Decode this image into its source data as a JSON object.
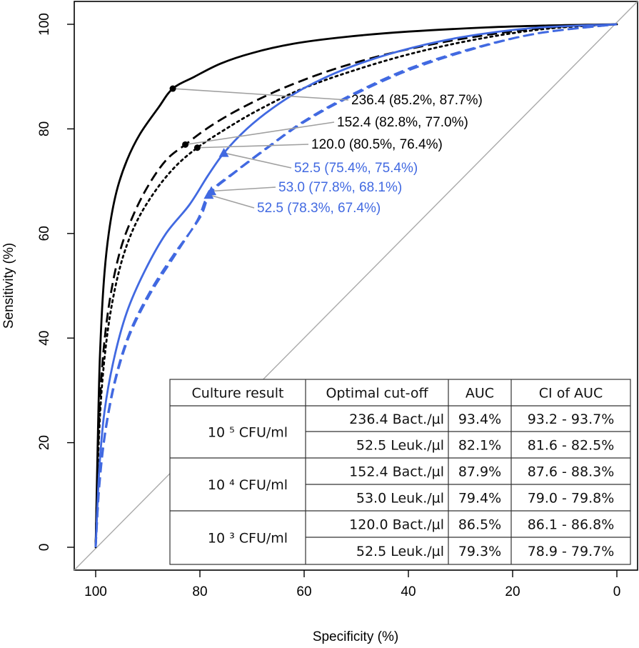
{
  "chart_data": {
    "type": "line",
    "title": "",
    "xlabel": "Specificity (%)",
    "ylabel": "Sensitivity (%)",
    "xlim": [
      100,
      0
    ],
    "ylim": [
      0,
      100
    ],
    "xticks": [
      "100",
      "80",
      "60",
      "40",
      "20",
      "0"
    ],
    "yticks": [
      "0",
      "20",
      "40",
      "60",
      "80",
      "100"
    ],
    "grid": false,
    "series": [
      {
        "name": "10^5 CFU/ml Bacteria",
        "color": "#000000",
        "style": "solid",
        "x": [
          100,
          99.6,
          99.2,
          98.5,
          97.5,
          96,
          94,
          91.5,
          88,
          85.2,
          81,
          76,
          70,
          62,
          52,
          40,
          25,
          12,
          0
        ],
        "y": [
          0,
          20,
          36,
          50,
          60,
          68,
          74,
          79,
          84,
          87.7,
          90,
          92.5,
          94.5,
          96.3,
          97.6,
          98.6,
          99.4,
          99.8,
          100
        ]
      },
      {
        "name": "10^4 CFU/ml Bacteria",
        "color": "#000000",
        "style": "dashed",
        "x": [
          100,
          99.5,
          98.8,
          97.5,
          95.5,
          93,
          90,
          86.5,
          82.8,
          78,
          72,
          64,
          54,
          42,
          28,
          14,
          0
        ],
        "y": [
          0,
          20,
          34,
          46,
          56,
          63,
          69,
          74,
          77.0,
          80.5,
          84,
          87.8,
          91.5,
          94.8,
          97.5,
          99.3,
          100
        ]
      },
      {
        "name": "10^3 CFU/ml Bacteria",
        "color": "#000000",
        "style": "dotted",
        "x": [
          100,
          99.5,
          98.7,
          97.3,
          95.2,
          92.5,
          89,
          85,
          80.5,
          75,
          69,
          61,
          51,
          39,
          26,
          13,
          0
        ],
        "y": [
          0,
          18,
          32,
          44,
          54,
          61.5,
          67.5,
          72.5,
          76.4,
          80,
          83.5,
          87.4,
          91,
          94.5,
          97.3,
          99.2,
          100
        ]
      },
      {
        "name": "10^5 CFU/ml Leukocytes",
        "color": "#4169E1",
        "style": "solid",
        "x": [
          100,
          99.3,
          98.3,
          96.5,
          94,
          90.5,
          86.5,
          82,
          78.5,
          75.4,
          71,
          66,
          60,
          52,
          42,
          30,
          16,
          0
        ],
        "y": [
          0,
          15,
          26,
          36,
          45,
          53,
          60,
          65.5,
          71,
          75.4,
          80,
          84,
          87.8,
          91.5,
          94.8,
          97.5,
          99.3,
          100
        ]
      },
      {
        "name": "10^4 CFU/ml Leukocytes",
        "color": "#4169E1",
        "style": "dashed",
        "x": [
          100,
          99.3,
          98.2,
          96.3,
          93.5,
          89.5,
          85,
          80,
          77.8,
          73,
          67,
          60,
          51,
          40,
          28,
          15,
          0
        ],
        "y": [
          0,
          12,
          22,
          32,
          41,
          49,
          56,
          63,
          68.1,
          72,
          76.5,
          81.5,
          86.5,
          91.5,
          95.3,
          98.3,
          100
        ]
      },
      {
        "name": "10^3 CFU/ml Leukocytes",
        "color": "#4169E1",
        "style": "dashed",
        "x": [
          100,
          99.3,
          98.2,
          96.3,
          93.5,
          89.5,
          85,
          80.5,
          78.3,
          73.5,
          67.5,
          60.5,
          51.5,
          40.5,
          28.5,
          15.5,
          0
        ],
        "y": [
          0,
          11.5,
          21.5,
          31.5,
          40.5,
          48.5,
          55.5,
          62.5,
          67.4,
          71.5,
          76,
          81,
          86,
          91,
          95,
          98.2,
          100
        ]
      }
    ],
    "reference_line": {
      "from": [
        100,
        0
      ],
      "to": [
        0,
        100
      ],
      "color": "#AAAAAA"
    },
    "cutoff_points": [
      {
        "label": "236.4 (85.2%, 87.7%)",
        "x": 85.2,
        "y": 87.7,
        "marker": "circle",
        "color": "#000000"
      },
      {
        "label": "152.4 (82.8%, 77.0%)",
        "x": 82.8,
        "y": 77.0,
        "marker": "circle",
        "color": "#000000"
      },
      {
        "label": "120.0 (80.5%, 76.4%)",
        "x": 80.5,
        "y": 76.4,
        "marker": "circle",
        "color": "#000000"
      },
      {
        "label": "52.5 (75.4%, 75.4%)",
        "x": 75.4,
        "y": 75.4,
        "marker": "triangle",
        "color": "#4169E1"
      },
      {
        "label": "53.0 (77.8%, 68.1%)",
        "x": 77.8,
        "y": 68.1,
        "marker": "triangle",
        "color": "#4169E1"
      },
      {
        "label": "52.5 (78.3%, 67.4%)",
        "x": 78.3,
        "y": 67.4,
        "marker": "triangle",
        "color": "#4169E1"
      }
    ],
    "table": {
      "headers": [
        "Culture result",
        "Optimal cut-off",
        "AUC",
        "CI of AUC"
      ],
      "groups": [
        {
          "culture": "10 ⁵ CFU/ml",
          "rows": [
            {
              "cutoff": "236.4 Bact./µl",
              "auc": "93.4%",
              "ci": "93.2 - 93.7%"
            },
            {
              "cutoff": "52.5 Leuk./µl",
              "auc": "82.1%",
              "ci": "81.6 - 82.5%"
            }
          ]
        },
        {
          "culture": "10 ⁴ CFU/ml",
          "rows": [
            {
              "cutoff": "152.4 Bact./µl",
              "auc": "87.9%",
              "ci": "87.6 - 88.3%"
            },
            {
              "cutoff": "53.0 Leuk./µl",
              "auc": "79.4%",
              "ci": "79.0 - 79.8%"
            }
          ]
        },
        {
          "culture": "10 ³ CFU/ml",
          "rows": [
            {
              "cutoff": "120.0 Bact./µl",
              "auc": "86.5%",
              "ci": "86.1 -  86.8%"
            },
            {
              "cutoff": "52.5 Leuk./µl",
              "auc": "79.3%",
              "ci": "78.9 - 79.7%"
            }
          ]
        }
      ]
    }
  }
}
